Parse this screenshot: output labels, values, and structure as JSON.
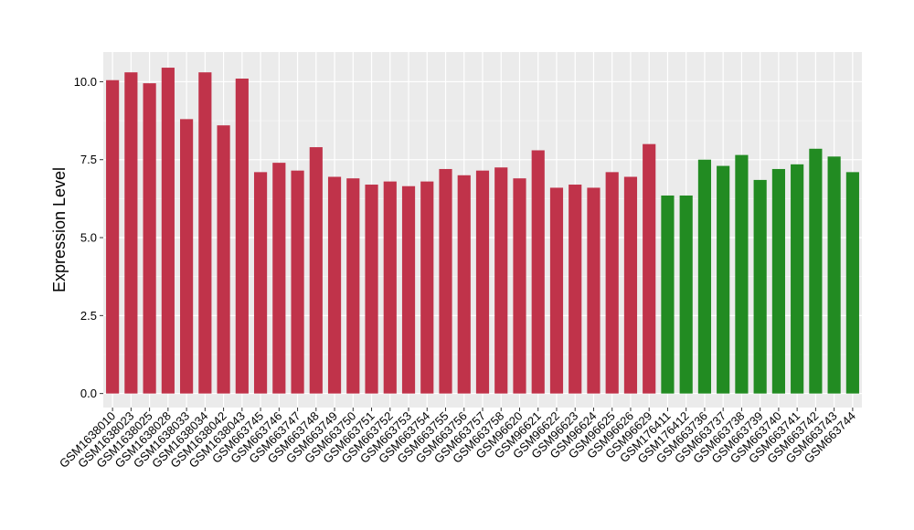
{
  "chart_data": {
    "type": "bar",
    "title": "",
    "xlabel": "",
    "ylabel": "Expression Level",
    "ylim": [
      -0.45,
      10.95
    ],
    "yticks": [
      0.0,
      2.5,
      5.0,
      7.5,
      10.0
    ],
    "ytick_labels": [
      "0.0",
      "2.5",
      "5.0",
      "7.5",
      "10.0"
    ],
    "grid": true,
    "legend": "none",
    "colors": {
      "group_a": "#c0334a",
      "group_b": "#228b22",
      "panel_bg": "#ebebeb",
      "grid_major": "#ffffff"
    },
    "categories": [
      "GSM1638010",
      "GSM1638023",
      "GSM1638025",
      "GSM1638028",
      "GSM1638033",
      "GSM1638034",
      "GSM1638042",
      "GSM1638043",
      "GSM663745",
      "GSM663746",
      "GSM663747",
      "GSM663748",
      "GSM663749",
      "GSM663750",
      "GSM663751",
      "GSM663752",
      "GSM663753",
      "GSM663754",
      "GSM663755",
      "GSM663756",
      "GSM663757",
      "GSM663758",
      "GSM96620",
      "GSM96621",
      "GSM96622",
      "GSM96623",
      "GSM96624",
      "GSM96625",
      "GSM96626",
      "GSM96629",
      "GSM176411",
      "GSM176412",
      "GSM663736",
      "GSM663737",
      "GSM663738",
      "GSM663739",
      "GSM663740",
      "GSM663741",
      "GSM663742",
      "GSM663743",
      "GSM663744"
    ],
    "values": [
      10.05,
      10.3,
      9.95,
      10.45,
      8.8,
      10.3,
      8.6,
      10.1,
      7.1,
      7.4,
      7.15,
      7.9,
      6.95,
      6.9,
      6.7,
      6.8,
      6.65,
      6.8,
      7.2,
      7.0,
      7.15,
      7.25,
      6.9,
      7.8,
      6.6,
      6.7,
      6.6,
      7.1,
      6.95,
      8.0,
      6.35,
      6.35,
      7.5,
      7.3,
      7.65,
      6.85,
      7.2,
      7.35,
      7.85,
      7.6,
      7.1
    ],
    "groups": [
      "a",
      "a",
      "a",
      "a",
      "a",
      "a",
      "a",
      "a",
      "a",
      "a",
      "a",
      "a",
      "a",
      "a",
      "a",
      "a",
      "a",
      "a",
      "a",
      "a",
      "a",
      "a",
      "a",
      "a",
      "a",
      "a",
      "a",
      "a",
      "a",
      "a",
      "b",
      "b",
      "b",
      "b",
      "b",
      "b",
      "b",
      "b",
      "b",
      "b",
      "b"
    ]
  }
}
